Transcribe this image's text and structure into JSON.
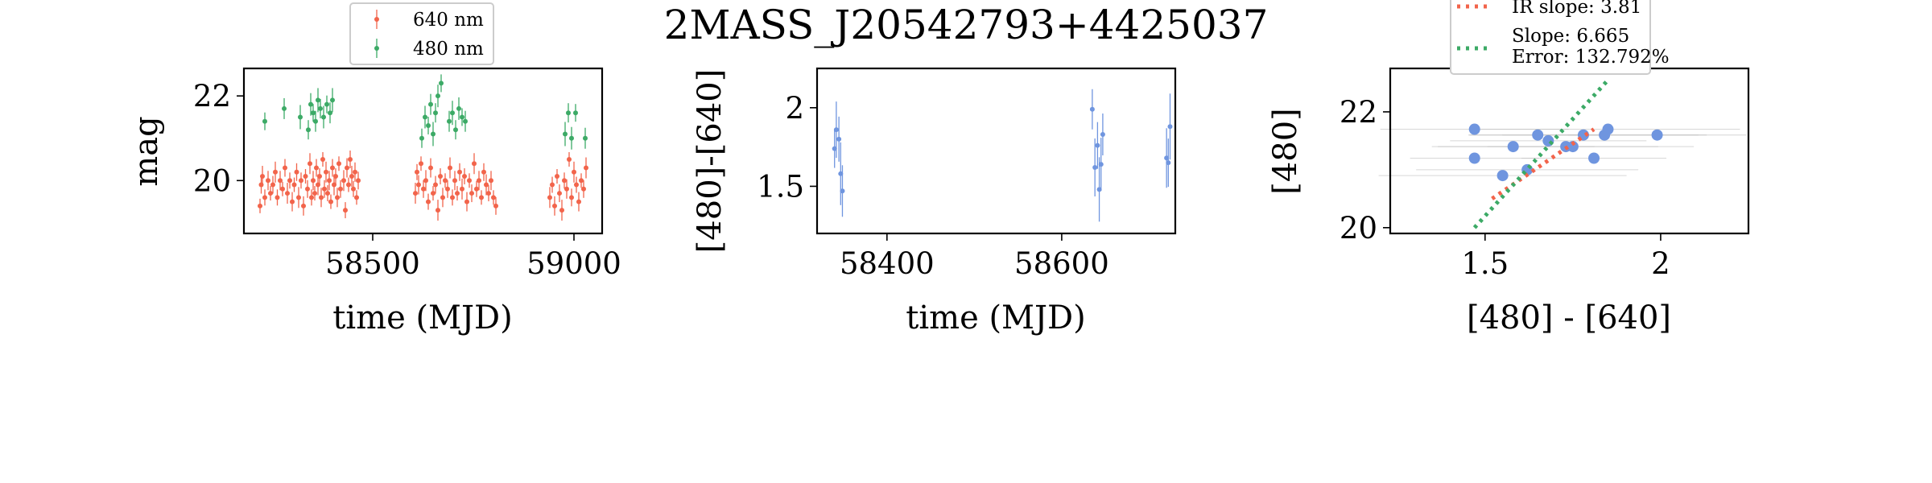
{
  "figure": {
    "title": "2MASS_J20542793+4425037",
    "colors": {
      "red": "#f2644b",
      "green": "#3caa66",
      "blue": "#6f95df",
      "grey": "#bdbdbd"
    }
  },
  "chart_data": [
    {
      "type": "scatter",
      "name": "light-curve",
      "xlabel": "time (MJD)",
      "ylabel": "mag",
      "xlim": [
        58180,
        59070
      ],
      "ylim": [
        22.65,
        18.75
      ],
      "y_inverted": true,
      "xticks": [
        58500,
        59000
      ],
      "yticks": [
        20,
        22
      ],
      "legend": {
        "location": "top-center, above axes",
        "entries": [
          "640 nm",
          "480 nm"
        ]
      },
      "series": [
        {
          "name": "640 nm",
          "color": "#f2644b",
          "marker": "point with error bar",
          "points": [
            [
              58220,
              19.4
            ],
            [
              58223,
              19.9
            ],
            [
              58226,
              20.1
            ],
            [
              58232,
              19.6
            ],
            [
              58240,
              20.0
            ],
            [
              58246,
              19.7
            ],
            [
              58252,
              19.9
            ],
            [
              58258,
              20.2
            ],
            [
              58263,
              19.6
            ],
            [
              58270,
              20.0
            ],
            [
              58276,
              19.8
            ],
            [
              58282,
              20.3
            ],
            [
              58288,
              19.7
            ],
            [
              58294,
              20.0
            ],
            [
              58300,
              19.5
            ],
            [
              58305,
              19.9
            ],
            [
              58311,
              20.2
            ],
            [
              58316,
              19.6
            ],
            [
              58322,
              20.0
            ],
            [
              58328,
              19.4
            ],
            [
              58333,
              20.1
            ],
            [
              58338,
              19.8
            ],
            [
              58344,
              20.4
            ],
            [
              58348,
              19.6
            ],
            [
              58352,
              20.0
            ],
            [
              58356,
              19.7
            ],
            [
              58360,
              20.3
            ],
            [
              58364,
              19.9
            ],
            [
              58368,
              20.1
            ],
            [
              58372,
              19.6
            ],
            [
              58376,
              20.5
            ],
            [
              58380,
              19.8
            ],
            [
              58384,
              20.2
            ],
            [
              58388,
              19.7
            ],
            [
              58392,
              20.0
            ],
            [
              58396,
              19.5
            ],
            [
              58400,
              20.3
            ],
            [
              58404,
              19.9
            ],
            [
              58408,
              20.1
            ],
            [
              58412,
              19.6
            ],
            [
              58416,
              20.4
            ],
            [
              58420,
              19.8
            ],
            [
              58428,
              20.0
            ],
            [
              58432,
              19.3
            ],
            [
              58436,
              20.3
            ],
            [
              58440,
              19.9
            ],
            [
              58444,
              20.5
            ],
            [
              58448,
              20.1
            ],
            [
              58452,
              19.8
            ],
            [
              58456,
              20.2
            ],
            [
              58460,
              19.6
            ],
            [
              58464,
              20.0
            ],
            [
              58606,
              19.7
            ],
            [
              58610,
              20.2
            ],
            [
              58614,
              19.9
            ],
            [
              58620,
              20.4
            ],
            [
              58626,
              19.8
            ],
            [
              58632,
              20.0
            ],
            [
              58638,
              19.5
            ],
            [
              58644,
              20.3
            ],
            [
              58650,
              19.7
            ],
            [
              58656,
              19.9
            ],
            [
              58662,
              19.3
            ],
            [
              58668,
              20.1
            ],
            [
              58674,
              19.6
            ],
            [
              58680,
              20.0
            ],
            [
              58686,
              19.8
            ],
            [
              58692,
              20.3
            ],
            [
              58698,
              19.6
            ],
            [
              58704,
              20.0
            ],
            [
              58710,
              19.7
            ],
            [
              58716,
              20.2
            ],
            [
              58722,
              19.8
            ],
            [
              58728,
              20.1
            ],
            [
              58734,
              19.5
            ],
            [
              58740,
              20.0
            ],
            [
              58746,
              19.7
            ],
            [
              58752,
              20.4
            ],
            [
              58758,
              19.8
            ],
            [
              58764,
              20.0
            ],
            [
              58770,
              19.6
            ],
            [
              58776,
              20.2
            ],
            [
              58782,
              19.9
            ],
            [
              58788,
              19.7
            ],
            [
              58794,
              20.0
            ],
            [
              58800,
              19.6
            ],
            [
              58806,
              19.4
            ],
            [
              58940,
              19.6
            ],
            [
              58946,
              19.9
            ],
            [
              58952,
              19.4
            ],
            [
              58958,
              20.1
            ],
            [
              58964,
              19.7
            ],
            [
              58970,
              19.3
            ],
            [
              58976,
              20.0
            ],
            [
              58982,
              19.8
            ],
            [
              58988,
              20.5
            ],
            [
              58994,
              19.6
            ],
            [
              59000,
              20.2
            ],
            [
              59006,
              19.9
            ],
            [
              59012,
              19.5
            ],
            [
              59018,
              20.0
            ],
            [
              59024,
              19.8
            ],
            [
              59030,
              20.3
            ]
          ]
        },
        {
          "name": "480 nm",
          "color": "#3caa66",
          "marker": "point with error bar",
          "points": [
            [
              58232,
              21.4
            ],
            [
              58280,
              21.7
            ],
            [
              58320,
              21.5
            ],
            [
              58340,
              21.2
            ],
            [
              58346,
              21.8
            ],
            [
              58352,
              21.6
            ],
            [
              58358,
              21.4
            ],
            [
              58364,
              21.9
            ],
            [
              58370,
              21.7
            ],
            [
              58378,
              21.5
            ],
            [
              58386,
              21.8
            ],
            [
              58394,
              21.6
            ],
            [
              58400,
              21.9
            ],
            [
              58622,
              21.0
            ],
            [
              58630,
              21.5
            ],
            [
              58638,
              21.3
            ],
            [
              58644,
              21.8
            ],
            [
              58650,
              21.1
            ],
            [
              58656,
              21.6
            ],
            [
              58662,
              22.0
            ],
            [
              58670,
              22.3
            ],
            [
              58690,
              21.4
            ],
            [
              58698,
              21.6
            ],
            [
              58706,
              21.2
            ],
            [
              58714,
              21.7
            ],
            [
              58722,
              21.5
            ],
            [
              58730,
              21.4
            ],
            [
              58978,
              21.1
            ],
            [
              58986,
              21.6
            ],
            [
              58994,
              21.0
            ],
            [
              59004,
              21.6
            ],
            [
              59028,
              21.0
            ]
          ]
        }
      ]
    },
    {
      "type": "scatter",
      "name": "color-curve",
      "xlabel": "time (MJD)",
      "ylabel": "[480]-[640]",
      "xlim": [
        58320,
        58730
      ],
      "ylim": [
        2.25,
        1.2
      ],
      "y_inverted": true,
      "xticks": [
        58400,
        58600
      ],
      "yticks": [
        1.5,
        2.0
      ],
      "series": [
        {
          "name": "",
          "color": "#6f95df",
          "marker": "point with error bar",
          "points": [
            [
              58340,
              1.74
            ],
            [
              58342,
              1.86
            ],
            [
              58345,
              1.8
            ],
            [
              58347,
              1.58
            ],
            [
              58349,
              1.47
            ],
            [
              58635,
              1.99
            ],
            [
              58638,
              1.62
            ],
            [
              58641,
              1.76
            ],
            [
              58643,
              1.48
            ],
            [
              58645,
              1.64
            ],
            [
              58647,
              1.83
            ],
            [
              58720,
              1.68
            ],
            [
              58722,
              1.65
            ],
            [
              58724,
              1.88
            ]
          ]
        }
      ]
    },
    {
      "type": "scatter",
      "name": "color-magnitude",
      "xlabel": "[480] - [640]",
      "ylabel": "[480]",
      "xlim": [
        1.23,
        2.25
      ],
      "ylim": [
        22.75,
        19.9
      ],
      "y_inverted": true,
      "xticks": [
        1.5,
        2.0
      ],
      "yticks": [
        20,
        22
      ],
      "legend": {
        "location": "top, above axes",
        "entries": [
          "IR slope: 3.81",
          "Slope: 6.665",
          "Error: 132.792%"
        ]
      },
      "points": [
        [
          1.47,
          21.2
        ],
        [
          1.47,
          21.7
        ],
        [
          1.55,
          20.9
        ],
        [
          1.58,
          21.4
        ],
        [
          1.62,
          21.0
        ],
        [
          1.65,
          21.6
        ],
        [
          1.68,
          21.5
        ],
        [
          1.73,
          21.4
        ],
        [
          1.75,
          21.4
        ],
        [
          1.78,
          21.6
        ],
        [
          1.81,
          21.2
        ],
        [
          1.84,
          21.6
        ],
        [
          1.85,
          21.7
        ],
        [
          1.99,
          21.6
        ]
      ],
      "lines": [
        {
          "name": "IR slope: 3.81",
          "style": "dotted",
          "color": "#f2644b",
          "from": [
            1.52,
            20.5
          ],
          "to": [
            1.81,
            21.7
          ]
        },
        {
          "name": "Slope: 6.665",
          "style": "dotted",
          "color": "#3caa66",
          "from": [
            1.47,
            20.0
          ],
          "to": [
            1.85,
            22.55
          ]
        }
      ]
    }
  ]
}
